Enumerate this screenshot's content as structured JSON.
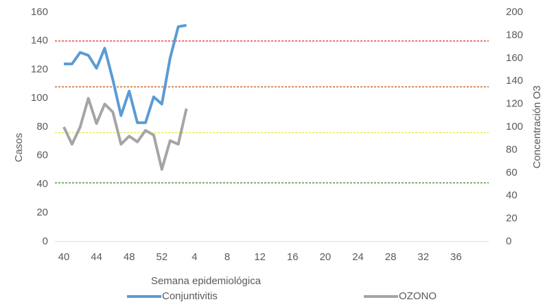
{
  "chart_data": {
    "type": "line",
    "x_label": "Semana epidemiológica",
    "y_label": "Casos",
    "y2_label": "Concentración O3",
    "categories": [
      "40",
      null,
      null,
      null,
      "44",
      null,
      null,
      null,
      "48",
      null,
      null,
      null,
      "52",
      null,
      null,
      null,
      "4",
      null,
      null,
      null,
      "8",
      null,
      null,
      null,
      "12",
      null,
      null,
      null,
      "16",
      null,
      null,
      null,
      "20",
      null,
      null,
      null,
      "24",
      null,
      null,
      null,
      "28",
      null,
      null,
      null,
      "32",
      null,
      null,
      null,
      "36",
      null,
      null,
      null
    ],
    "series": [
      {
        "name": "Conjuntivitis",
        "color": "#5b9bd5",
        "axis": "y",
        "values": [
          124,
          124,
          132,
          130,
          121,
          135,
          113,
          88,
          105,
          83,
          83,
          101,
          96,
          128,
          150,
          151,
          null,
          null,
          null,
          null,
          null,
          null,
          null,
          null,
          null,
          null,
          null,
          null,
          null,
          null,
          null,
          null,
          null,
          null,
          null,
          null,
          null,
          null,
          null,
          null,
          null,
          null,
          null,
          null,
          null,
          null,
          null,
          null,
          null,
          null,
          null,
          null
        ]
      },
      {
        "name": "OZONO",
        "color": "#a5a5a5",
        "axis": "y2",
        "values": [
          100,
          85,
          100,
          125,
          103,
          120,
          113,
          85,
          92,
          87,
          97,
          93,
          63,
          88,
          85,
          116,
          null,
          null,
          null,
          null,
          null,
          null,
          null,
          null,
          null,
          null,
          null,
          null,
          null,
          null,
          null,
          null,
          null,
          null,
          null,
          null,
          null,
          null,
          null,
          null,
          null,
          null,
          null,
          null,
          null,
          null,
          null,
          null,
          null,
          null,
          null,
          null
        ]
      }
    ],
    "reference_lines": [
      {
        "value": 140,
        "color": "#e02020"
      },
      {
        "value": 108,
        "color": "#c55a11"
      },
      {
        "value": 76,
        "color": "#e8e830"
      },
      {
        "value": 41,
        "color": "#3a8a2a"
      }
    ],
    "ylim": [
      0,
      160
    ],
    "yticks": [
      0,
      20,
      40,
      60,
      80,
      100,
      120,
      140,
      160
    ],
    "y2lim": [
      0,
      200
    ],
    "y2ticks": [
      0,
      20,
      40,
      60,
      80,
      100,
      120,
      140,
      160,
      180,
      200
    ],
    "grid": false
  }
}
